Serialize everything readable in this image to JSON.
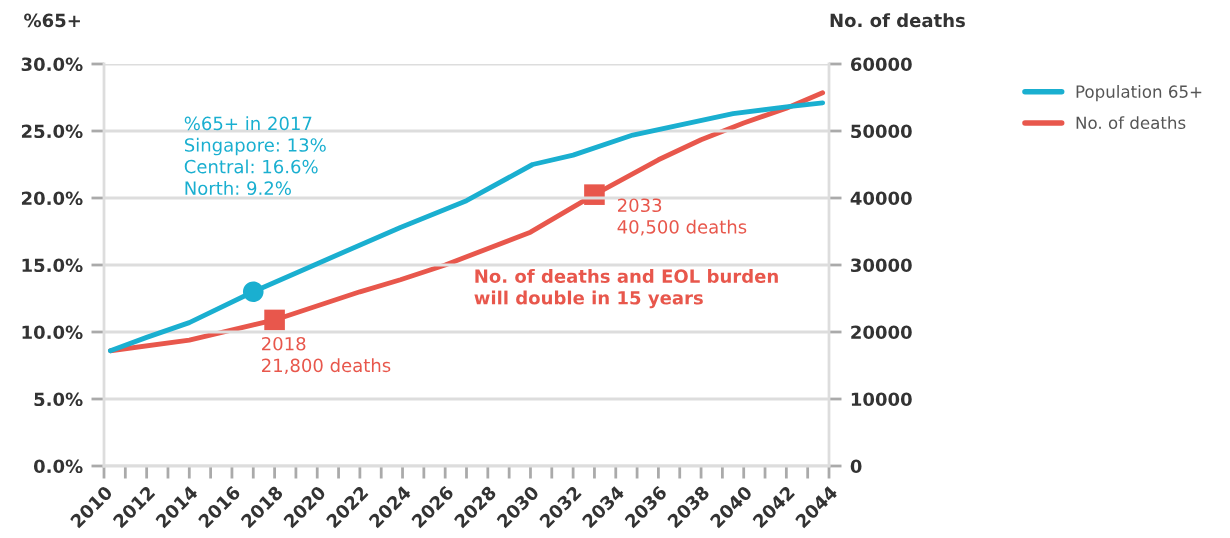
{
  "chart_data": {
    "type": "line",
    "ylabel": "%65+",
    "y2label": "No. of deaths",
    "series": [
      {
        "name": "Population 65+",
        "color": "#1aafd0",
        "axis": "y",
        "x": [
          2010.3,
          2012,
          2014,
          2017,
          2020,
          2023.9,
          2027,
          2030.1,
          2032,
          2034.8,
          2039.5,
          2042,
          2043.7
        ],
        "values": [
          8.6,
          9.6,
          10.7,
          13,
          15.1,
          17.8,
          19.8,
          22.5,
          23.2,
          24.7,
          26.3,
          26.8,
          27.1
        ]
      },
      {
        "name": "No. of deaths",
        "color": "#e8574c",
        "axis": "y2",
        "x": [
          2010.3,
          2014,
          2018,
          2022,
          2023.9,
          2026,
          2030,
          2033,
          2036,
          2038,
          2040,
          2042,
          2043.7
        ],
        "values": [
          17200,
          18800,
          21800,
          26000,
          27800,
          30000,
          34900,
          40500,
          45700,
          48700,
          51200,
          53400,
          55700
        ]
      },
      {
        "type": "scatter",
        "marker": "circle",
        "color": "#1aafd0",
        "axis": "y",
        "x": [
          2017
        ],
        "values": [
          13
        ]
      },
      {
        "type": "scatter",
        "marker": "square",
        "color": "#e8574c",
        "axis": "y2",
        "x": [
          2018,
          2033
        ],
        "values": [
          21800,
          40500
        ]
      }
    ],
    "xlim": [
      2010,
      2044
    ],
    "xticks": [
      {
        "value": 2010,
        "label": "2010"
      },
      {
        "value": 2011,
        "label": null
      },
      {
        "value": 2012,
        "label": "2012"
      },
      {
        "value": 2013,
        "label": null
      },
      {
        "value": 2014,
        "label": "2014"
      },
      {
        "value": 2015,
        "label": null
      },
      {
        "value": 2016,
        "label": "2016"
      },
      {
        "value": 2017,
        "label": null
      },
      {
        "value": 2018,
        "label": "2018"
      },
      {
        "value": 2019,
        "label": null
      },
      {
        "value": 2020,
        "label": "2020"
      },
      {
        "value": 2021,
        "label": null
      },
      {
        "value": 2022,
        "label": "2022"
      },
      {
        "value": 2023,
        "label": null
      },
      {
        "value": 2024,
        "label": "2024"
      },
      {
        "value": 2025,
        "label": null
      },
      {
        "value": 2026,
        "label": "2026"
      },
      {
        "value": 2027,
        "label": null
      },
      {
        "value": 2028,
        "label": "2028"
      },
      {
        "value": 2029,
        "label": null
      },
      {
        "value": 2030,
        "label": "2030"
      },
      {
        "value": 2031,
        "label": null
      },
      {
        "value": 2032,
        "label": "2032"
      },
      {
        "value": 2033,
        "label": null
      },
      {
        "value": 2034,
        "label": "2034"
      },
      {
        "value": 2035,
        "label": null
      },
      {
        "value": 2036,
        "label": "2036"
      },
      {
        "value": 2037,
        "label": null
      },
      {
        "value": 2038,
        "label": "2038"
      },
      {
        "value": 2039,
        "label": null
      },
      {
        "value": 2040,
        "label": "2040"
      },
      {
        "value": 2041,
        "label": null
      },
      {
        "value": 2042,
        "label": "2042"
      },
      {
        "value": 2043,
        "label": null
      },
      {
        "value": 2044,
        "label": "2044"
      }
    ],
    "ylim": [
      0,
      30
    ],
    "yticks": [
      {
        "value": 0,
        "label": "0.0%"
      },
      {
        "value": 5,
        "label": "5.0%"
      },
      {
        "value": 10,
        "label": "10.0%"
      },
      {
        "value": 15,
        "label": "15.0%"
      },
      {
        "value": 20,
        "label": "20.0%"
      },
      {
        "value": 25,
        "label": "25.0%"
      },
      {
        "value": 30,
        "label": "30.0%"
      }
    ],
    "y2lim": [
      0,
      60000
    ],
    "y2ticks": [
      0,
      10000,
      20000,
      30000,
      40000,
      50000,
      60000
    ],
    "grid": "y",
    "legend": "top right",
    "line_style": "solid",
    "annotations": [
      "%65+ in 2017\nSingapore: 13%\nCentral: 16.6%\nNorth: 9.2%",
      {
        "text": "2018\n21,800 deaths",
        "x": 2018,
        "y": 10.9
      },
      {
        "text": "2033\n40,500 deaths",
        "x": 2033,
        "y": 20.2
      },
      "No. of deaths and EOL burden\nwill double in 15 years"
    ]
  }
}
